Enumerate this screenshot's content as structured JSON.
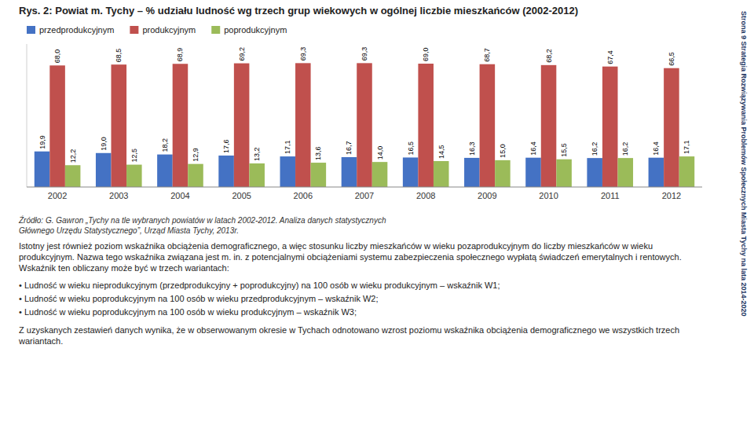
{
  "chart_data": {
    "type": "bar",
    "title": "Rys. 2: Powiat m. Tychy – % udziału ludność wg trzech grup wiekowych w ogólnej liczbie mieszkańców (2002-2012)",
    "categories": [
      "2002",
      "2003",
      "2004",
      "2005",
      "2006",
      "2007",
      "2008",
      "2009",
      "2010",
      "2011",
      "2012"
    ],
    "series": [
      {
        "name": "przedprodukcyjnym",
        "color": "#4472C4",
        "values": [
          19.9,
          19.0,
          18.2,
          17.6,
          17.1,
          16.7,
          16.5,
          16.3,
          16.4,
          16.2,
          16.4
        ],
        "value_labels": [
          "19,9",
          "19,0",
          "18,2",
          "17,6",
          "17,1",
          "16,7",
          "16,5",
          "16,3",
          "16,4",
          "16,2",
          "16,4"
        ]
      },
      {
        "name": "produkcyjnym",
        "color": "#C0504D",
        "values": [
          68.0,
          68.5,
          68.9,
          69.2,
          69.3,
          69.3,
          69.0,
          68.7,
          68.2,
          67.4,
          66.5
        ],
        "value_labels": [
          "68,0",
          "68,5",
          "68,9",
          "69,2",
          "69,3",
          "69,3",
          "69,0",
          "68,7",
          "68,2",
          "67,4",
          "66,5"
        ]
      },
      {
        "name": "poprodukcyjnym",
        "color": "#9BBB59",
        "values": [
          12.2,
          12.5,
          12.9,
          13.2,
          13.6,
          14.0,
          14.5,
          15.0,
          15.5,
          16.2,
          17.1
        ],
        "value_labels": [
          "12,2",
          "12,5",
          "12,9",
          "13,2",
          "13,6",
          "14,0",
          "14,5",
          "15,0",
          "15,5",
          "16,2",
          "17,1"
        ]
      }
    ],
    "ylim": [
      0,
      80
    ],
    "grid": false,
    "legend": "upper left",
    "data_labels": true,
    "tick_labels": "x",
    "annotations": [
      "Źródło: G. Gawron „Tychy na tle wybranych powiatów w latach 2002-2012. Analiza danych statystycznych",
      "Głównego Urzędu Statystycznego”, Urząd Miasta Tychy, 2013r.",
      "Istotny jest również poziom wskaźnika obciążenia demograficznego, a więc stosunku liczby mieszkańców w wieku pozaprodukcyjnym do liczby mieszkańców w wieku produkcyjnym. Nazwa tego wskaźnika związana jest m. in. z potencjalnymi obciążeniami systemu zabezpieczenia społecznego wypłatą świadczeń emerytalnych i rentowych. Wskaźnik ten obliczany może być w trzech wariantach:",
      "• Ludność w wieku nieprodukcyjnym (przedprodukcyjny + poprodukcyjny) na 100 osób w wieku produkcyjnym – wskaźnik W1;",
      "• Ludność w wieku poprodukcyjnym na 100 osób w wieku przedprodukcyjnym – wskaźnik W2;",
      "• Ludność w wieku poprodukcyjnym na 100 osób w wieku produkcyjnym – wskaźnik W3;",
      "Z uzyskanych zestawień danych wynika, że w obserwowanym okresie w Tychach odnotowano wzrost poziomu wskaźnika obciążenia demograficznego we wszystkich trzech wariantach.",
      "Strona 9  Strategia Rozwiązywania Problemów Społecznych Miasta Tychy na lata 2014-2020"
    ]
  }
}
